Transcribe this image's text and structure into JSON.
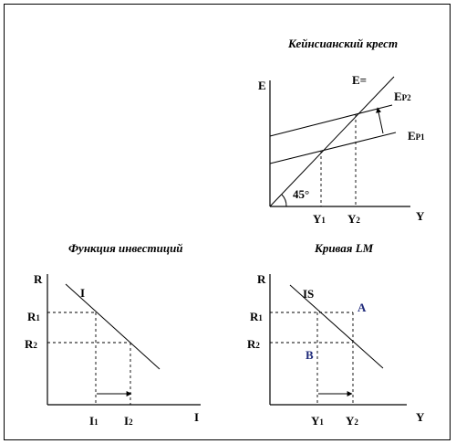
{
  "panels": {
    "keynesian_cross": {
      "title": "Кейнсианский крест",
      "y_axis": "E",
      "x_axis": "Y",
      "line_45": "E=",
      "ep2_main": "E",
      "ep2_sub": "P2",
      "ep1_main": "E",
      "ep1_sub": "P1",
      "angle": "45°",
      "y1_main": "Y",
      "y1_sub": "1",
      "y2_main": "Y",
      "y2_sub": "2"
    },
    "investment": {
      "title": "Функция инвестиций",
      "y_axis": "R",
      "x_axis": "I",
      "curve": "I",
      "r1_main": "R",
      "r1_sub": "1",
      "r2_main": "R",
      "r2_sub": "2",
      "i1_main": "I",
      "i1_sub": "1",
      "i2_main": "I",
      "i2_sub": "2"
    },
    "lm_curve": {
      "title": "Кривая LM",
      "y_axis": "R",
      "x_axis": "Y",
      "curve": "IS",
      "point_a": "A",
      "point_b": "B",
      "r1_main": "R",
      "r1_sub": "1",
      "r2_main": "R",
      "r2_sub": "2",
      "y1_main": "Y",
      "y1_sub": "1",
      "y2_main": "Y",
      "y2_sub": "2"
    }
  }
}
